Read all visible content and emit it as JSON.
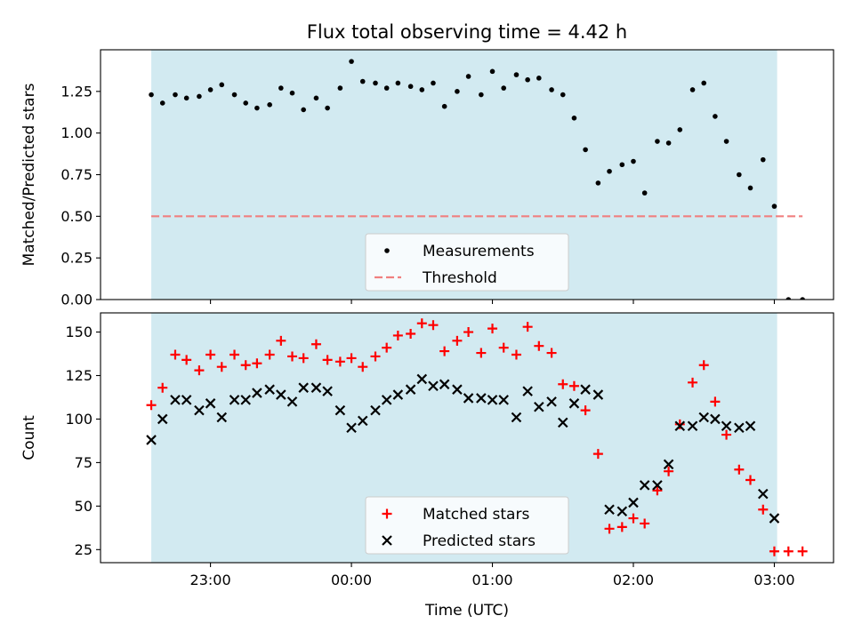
{
  "chart_data": {
    "type": "scatter",
    "title": "Flux total observing time = 4.42 h",
    "xlabel": "Time (UTC)",
    "x_unit": "hours UTC, values past 24 are after midnight",
    "x_ticks": [
      23,
      24,
      25,
      26,
      27
    ],
    "x_tick_labels": [
      "23:00",
      "00:00",
      "01:00",
      "02:00",
      "03:00"
    ],
    "x_range": [
      22.22,
      27.42
    ],
    "shaded_span": [
      22.58,
      27.02
    ],
    "shade_color": "#add8e6",
    "panels": [
      {
        "ylabel": "Matched/Predicted stars",
        "ylim": [
          0,
          1.5
        ],
        "yticks": [
          0.0,
          0.25,
          0.5,
          0.75,
          1.0,
          1.25
        ],
        "ytick_labels": [
          "0.00",
          "0.25",
          "0.50",
          "0.75",
          "1.00",
          "1.25"
        ],
        "threshold": {
          "name": "Threshold",
          "value": 0.5,
          "x": [
            22.58,
            27.2
          ],
          "color": "#f08080"
        },
        "series": [
          {
            "name": "Measurements",
            "marker": "dot",
            "color": "#000000",
            "points": [
              [
                22.58,
                1.23
              ],
              [
                22.66,
                1.18
              ],
              [
                22.75,
                1.23
              ],
              [
                22.83,
                1.21
              ],
              [
                22.92,
                1.22
              ],
              [
                23.0,
                1.26
              ],
              [
                23.08,
                1.29
              ],
              [
                23.17,
                1.23
              ],
              [
                23.25,
                1.18
              ],
              [
                23.33,
                1.15
              ],
              [
                23.42,
                1.17
              ],
              [
                23.5,
                1.27
              ],
              [
                23.58,
                1.24
              ],
              [
                23.66,
                1.14
              ],
              [
                23.75,
                1.21
              ],
              [
                23.83,
                1.15
              ],
              [
                23.92,
                1.27
              ],
              [
                24.0,
                1.43
              ],
              [
                24.08,
                1.31
              ],
              [
                24.17,
                1.3
              ],
              [
                24.25,
                1.27
              ],
              [
                24.33,
                1.3
              ],
              [
                24.42,
                1.28
              ],
              [
                24.5,
                1.26
              ],
              [
                24.58,
                1.3
              ],
              [
                24.66,
                1.16
              ],
              [
                24.75,
                1.25
              ],
              [
                24.83,
                1.34
              ],
              [
                24.92,
                1.23
              ],
              [
                25.0,
                1.37
              ],
              [
                25.08,
                1.27
              ],
              [
                25.17,
                1.35
              ],
              [
                25.25,
                1.32
              ],
              [
                25.33,
                1.33
              ],
              [
                25.42,
                1.26
              ],
              [
                25.5,
                1.23
              ],
              [
                25.58,
                1.09
              ],
              [
                25.66,
                0.9
              ],
              [
                25.75,
                0.7
              ],
              [
                25.83,
                0.77
              ],
              [
                25.92,
                0.81
              ],
              [
                26.0,
                0.83
              ],
              [
                26.08,
                0.64
              ],
              [
                26.17,
                0.95
              ],
              [
                26.25,
                0.94
              ],
              [
                26.33,
                1.02
              ],
              [
                26.42,
                1.26
              ],
              [
                26.5,
                1.3
              ],
              [
                26.58,
                1.1
              ],
              [
                26.66,
                0.95
              ],
              [
                26.75,
                0.75
              ],
              [
                26.83,
                0.67
              ],
              [
                26.92,
                0.84
              ],
              [
                27.0,
                0.56
              ],
              [
                27.1,
                0.0
              ],
              [
                27.2,
                0.0
              ]
            ]
          }
        ]
      },
      {
        "ylabel": "Count",
        "ylim": [
          17.5,
          161
        ],
        "yticks": [
          25,
          50,
          75,
          100,
          125,
          150
        ],
        "ytick_labels": [
          "25",
          "50",
          "75",
          "100",
          "125",
          "150"
        ],
        "series": [
          {
            "name": "Matched stars",
            "marker": "plus",
            "color": "#ff0000",
            "points": [
              [
                22.58,
                108
              ],
              [
                22.66,
                118
              ],
              [
                22.75,
                137
              ],
              [
                22.83,
                134
              ],
              [
                22.92,
                128
              ],
              [
                23.0,
                137
              ],
              [
                23.08,
                130
              ],
              [
                23.17,
                137
              ],
              [
                23.25,
                131
              ],
              [
                23.33,
                132
              ],
              [
                23.42,
                137
              ],
              [
                23.5,
                145
              ],
              [
                23.58,
                136
              ],
              [
                23.66,
                135
              ],
              [
                23.75,
                143
              ],
              [
                23.83,
                134
              ],
              [
                23.92,
                133
              ],
              [
                24.0,
                135
              ],
              [
                24.08,
                130
              ],
              [
                24.17,
                136
              ],
              [
                24.25,
                141
              ],
              [
                24.33,
                148
              ],
              [
                24.42,
                149
              ],
              [
                24.5,
                155
              ],
              [
                24.58,
                154
              ],
              [
                24.66,
                139
              ],
              [
                24.75,
                145
              ],
              [
                24.83,
                150
              ],
              [
                24.92,
                138
              ],
              [
                25.0,
                152
              ],
              [
                25.08,
                141
              ],
              [
                25.17,
                137
              ],
              [
                25.25,
                153
              ],
              [
                25.33,
                142
              ],
              [
                25.42,
                138
              ],
              [
                25.5,
                120
              ],
              [
                25.58,
                119
              ],
              [
                25.66,
                105
              ],
              [
                25.75,
                80
              ],
              [
                25.83,
                37
              ],
              [
                25.92,
                38
              ],
              [
                26.0,
                43
              ],
              [
                26.08,
                40
              ],
              [
                26.17,
                59
              ],
              [
                26.25,
                70
              ],
              [
                26.33,
                97
              ],
              [
                26.42,
                121
              ],
              [
                26.5,
                131
              ],
              [
                26.58,
                110
              ],
              [
                26.66,
                91
              ],
              [
                26.75,
                71
              ],
              [
                26.83,
                65
              ],
              [
                26.92,
                48
              ],
              [
                27.0,
                24
              ],
              [
                27.1,
                24
              ],
              [
                27.2,
                24
              ]
            ]
          },
          {
            "name": "Predicted stars",
            "marker": "x",
            "color": "#000000",
            "points": [
              [
                22.58,
                88
              ],
              [
                22.66,
                100
              ],
              [
                22.75,
                111
              ],
              [
                22.83,
                111
              ],
              [
                22.92,
                105
              ],
              [
                23.0,
                109
              ],
              [
                23.08,
                101
              ],
              [
                23.17,
                111
              ],
              [
                23.25,
                111
              ],
              [
                23.33,
                115
              ],
              [
                23.42,
                117
              ],
              [
                23.5,
                114
              ],
              [
                23.58,
                110
              ],
              [
                23.66,
                118
              ],
              [
                23.75,
                118
              ],
              [
                23.83,
                116
              ],
              [
                23.92,
                105
              ],
              [
                24.0,
                95
              ],
              [
                24.08,
                99
              ],
              [
                24.17,
                105
              ],
              [
                24.25,
                111
              ],
              [
                24.33,
                114
              ],
              [
                24.42,
                117
              ],
              [
                24.5,
                123
              ],
              [
                24.58,
                119
              ],
              [
                24.66,
                120
              ],
              [
                24.75,
                117
              ],
              [
                24.83,
                112
              ],
              [
                24.92,
                112
              ],
              [
                25.0,
                111
              ],
              [
                25.08,
                111
              ],
              [
                25.17,
                101
              ],
              [
                25.25,
                116
              ],
              [
                25.33,
                107
              ],
              [
                25.42,
                110
              ],
              [
                25.5,
                98
              ],
              [
                25.58,
                109
              ],
              [
                25.66,
                117
              ],
              [
                25.75,
                114
              ],
              [
                25.83,
                48
              ],
              [
                25.92,
                47
              ],
              [
                26.0,
                52
              ],
              [
                26.08,
                62
              ],
              [
                26.17,
                62
              ],
              [
                26.25,
                74
              ],
              [
                26.33,
                96
              ],
              [
                26.42,
                96
              ],
              [
                26.5,
                101
              ],
              [
                26.58,
                100
              ],
              [
                26.66,
                96
              ],
              [
                26.75,
                95
              ],
              [
                26.83,
                96
              ],
              [
                26.92,
                57
              ],
              [
                27.0,
                43
              ]
            ]
          }
        ]
      }
    ],
    "legend_placement": "lower center"
  }
}
